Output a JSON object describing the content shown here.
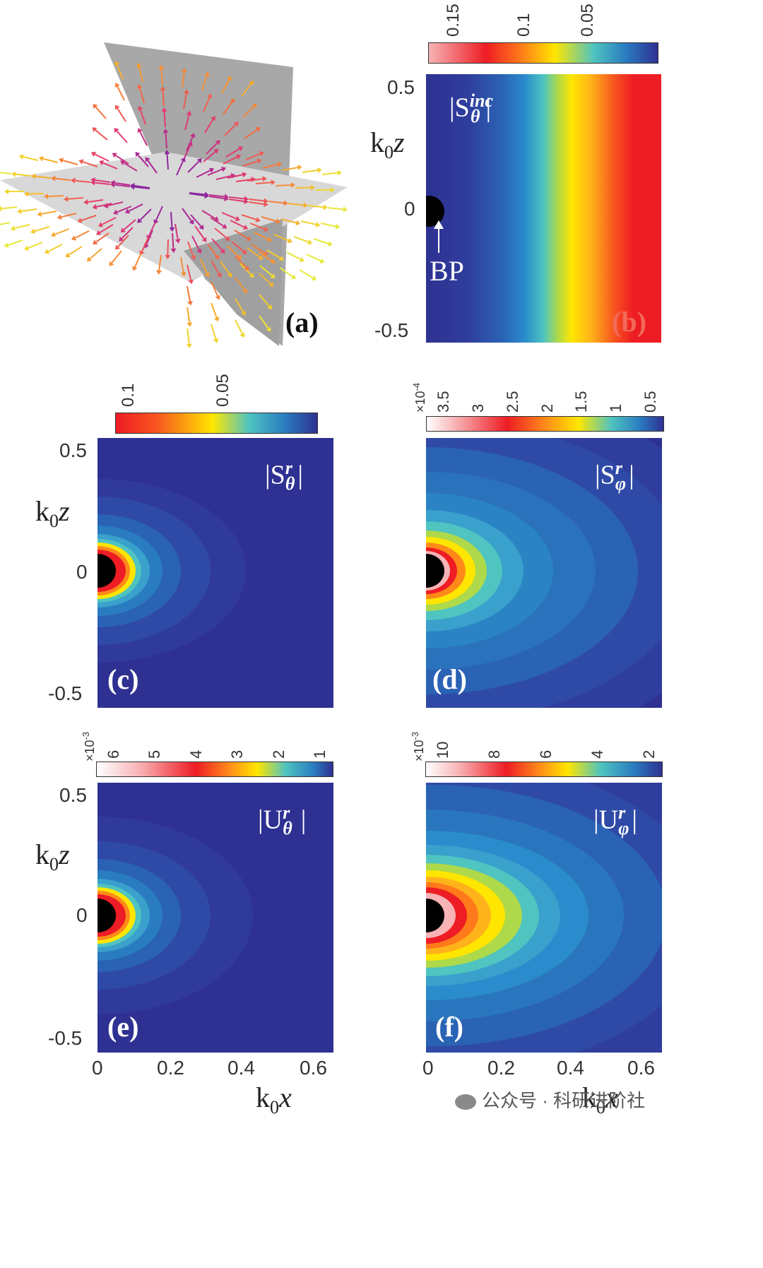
{
  "panels": {
    "a": {
      "label": "(a)"
    },
    "b": {
      "label": "(b)",
      "field_main": "|S",
      "field_sup": "inc",
      "field_sub": "θ",
      "field_end": "|",
      "annotation": "BP",
      "colorbar_ticks": [
        "0.15",
        "0.1",
        "0.05"
      ],
      "y_ticks": [
        "0.5",
        "0",
        "-0.5"
      ]
    },
    "c": {
      "label": "(c)",
      "field_main": "|S",
      "field_sup": "r",
      "field_sub": "θ",
      "field_end": "|",
      "colorbar_ticks": [
        "0.1",
        "0.05"
      ],
      "y_ticks": [
        "0.5",
        "0",
        "-0.5"
      ]
    },
    "d": {
      "label": "(d)",
      "field_main": "|S",
      "field_sup": "r",
      "field_sub": "φ",
      "field_end": "|",
      "colorbar_scale": "×10",
      "colorbar_scale_exp": "-4",
      "colorbar_ticks": [
        "3.5",
        "3",
        "2.5",
        "2",
        "1.5",
        "1",
        "0.5"
      ]
    },
    "e": {
      "label": "(e)",
      "field_main": "|U",
      "field_sup": "r",
      "field_sub": "θ",
      "field_end": "|",
      "colorbar_scale": "×10",
      "colorbar_scale_exp": "-3",
      "colorbar_ticks": [
        "6",
        "5",
        "4",
        "3",
        "2",
        "1"
      ],
      "y_ticks": [
        "0.5",
        "0",
        "-0.5"
      ],
      "x_ticks": [
        "0",
        "0.2",
        "0.4",
        "0.6"
      ]
    },
    "f": {
      "label": "(f)",
      "field_main": "|U",
      "field_sup": "r",
      "field_sub": "φ",
      "field_end": "|",
      "colorbar_scale": "×10",
      "colorbar_scale_exp": "-3",
      "colorbar_ticks": [
        "10",
        "8",
        "6",
        "4",
        "2"
      ],
      "x_ticks": [
        "0",
        "0.2",
        "0.4",
        "0.6"
      ]
    }
  },
  "axes": {
    "y_label_k": "k",
    "y_label_sub": "0",
    "y_label_var": "z",
    "x_label_k": "k",
    "x_label_sub": "0",
    "x_label_var": "x"
  },
  "watermark": {
    "text": "公众号 · 科研进阶社"
  },
  "colors": {
    "colormap": [
      "#ffffff",
      "#ee1c24",
      "#ffe600",
      "#4fc4c0",
      "#2a7cc0",
      "#2e3192"
    ],
    "background_field": "#2e3192",
    "beam_particle": "#000000",
    "plane_vertical": "#a6a6a6",
    "plane_horizontal": "#d9d9d9"
  }
}
